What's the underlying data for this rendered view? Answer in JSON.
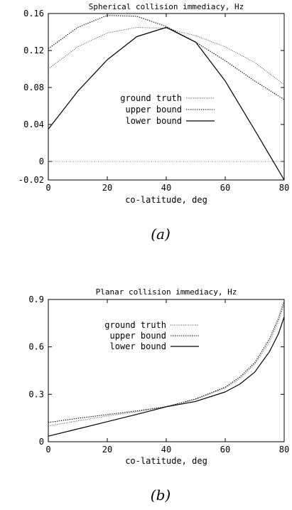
{
  "chart_data": [
    {
      "type": "line",
      "panel_label": "(a)",
      "title": "Spherical collision immediacy, Hz",
      "xlabel": "co-latitude, deg",
      "ylabel": "",
      "xlim": [
        0,
        80
      ],
      "ylim": [
        -0.02,
        0.16
      ],
      "xticks": [
        0,
        20,
        40,
        60,
        80
      ],
      "yticks": [
        -0.02,
        0,
        0.04,
        0.08,
        0.12,
        0.16
      ],
      "ytick_labels": [
        "-0.02",
        "0",
        "0.04",
        "0.08",
        "0.12",
        "0.16"
      ],
      "grid": false,
      "legend_position": "center",
      "x": [
        0,
        10,
        20,
        30,
        40,
        50,
        60,
        70,
        80
      ],
      "series": [
        {
          "name": "ground truth",
          "style": "dotted-fine",
          "values": [
            0.1,
            0.124,
            0.139,
            0.145,
            0.144,
            0.136,
            0.124,
            0.107,
            0.083
          ]
        },
        {
          "name": "upper bound",
          "style": "dotted",
          "values": [
            0.122,
            0.145,
            0.158,
            0.157,
            0.146,
            0.129,
            0.109,
            0.087,
            0.067
          ]
        },
        {
          "name": "lower bound",
          "style": "solid",
          "values": [
            0.035,
            0.076,
            0.11,
            0.135,
            0.145,
            0.129,
            0.087,
            0.034,
            -0.02
          ]
        }
      ],
      "zero_line": true
    },
    {
      "type": "line",
      "panel_label": "(b)",
      "title": "Planar collision immediacy, Hz",
      "xlabel": "co-latitude, deg",
      "ylabel": "",
      "xlim": [
        0,
        80
      ],
      "ylim": [
        0,
        0.9
      ],
      "xticks": [
        0,
        20,
        40,
        60,
        80
      ],
      "yticks": [
        0,
        0.3,
        0.6,
        0.9
      ],
      "ytick_labels": [
        "0",
        "0.3",
        "0.6",
        "0.9"
      ],
      "grid": false,
      "legend_position": "upper-center",
      "x": [
        0,
        10,
        20,
        30,
        40,
        50,
        60,
        65,
        70,
        75,
        78,
        80
      ],
      "series": [
        {
          "name": "ground truth",
          "style": "dotted-fine",
          "values": [
            0.1,
            0.132,
            0.163,
            0.19,
            0.221,
            0.268,
            0.34,
            0.4,
            0.49,
            0.63,
            0.76,
            0.87
          ]
        },
        {
          "name": "upper bound",
          "style": "dotted",
          "values": [
            0.122,
            0.148,
            0.172,
            0.195,
            0.222,
            0.271,
            0.345,
            0.41,
            0.5,
            0.65,
            0.78,
            0.89
          ]
        },
        {
          "name": "lower bound",
          "style": "solid",
          "values": [
            0.035,
            0.081,
            0.127,
            0.173,
            0.221,
            0.255,
            0.315,
            0.365,
            0.44,
            0.57,
            0.68,
            0.79
          ]
        }
      ]
    }
  ]
}
